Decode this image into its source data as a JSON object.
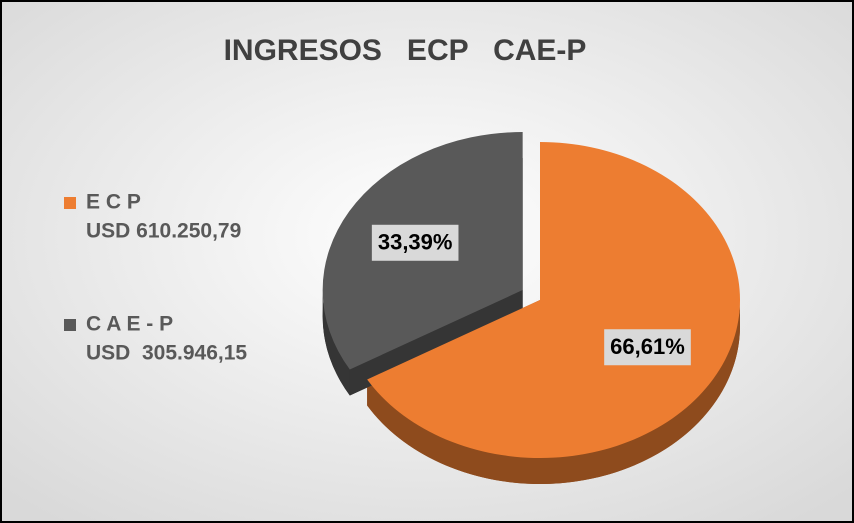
{
  "chart_data": {
    "type": "pie",
    "title": "INGRESOS   ECP   CAE-P",
    "categories": [
      "E C P",
      "C A E - P"
    ],
    "legend_details": [
      "USD 610.250,79",
      "USD  305.946,15"
    ],
    "values": [
      66.61,
      33.39
    ],
    "value_labels": [
      "66,61%",
      "33,39%"
    ],
    "colors": [
      "#ed7d31",
      "#595959"
    ],
    "legend_position": "left"
  }
}
